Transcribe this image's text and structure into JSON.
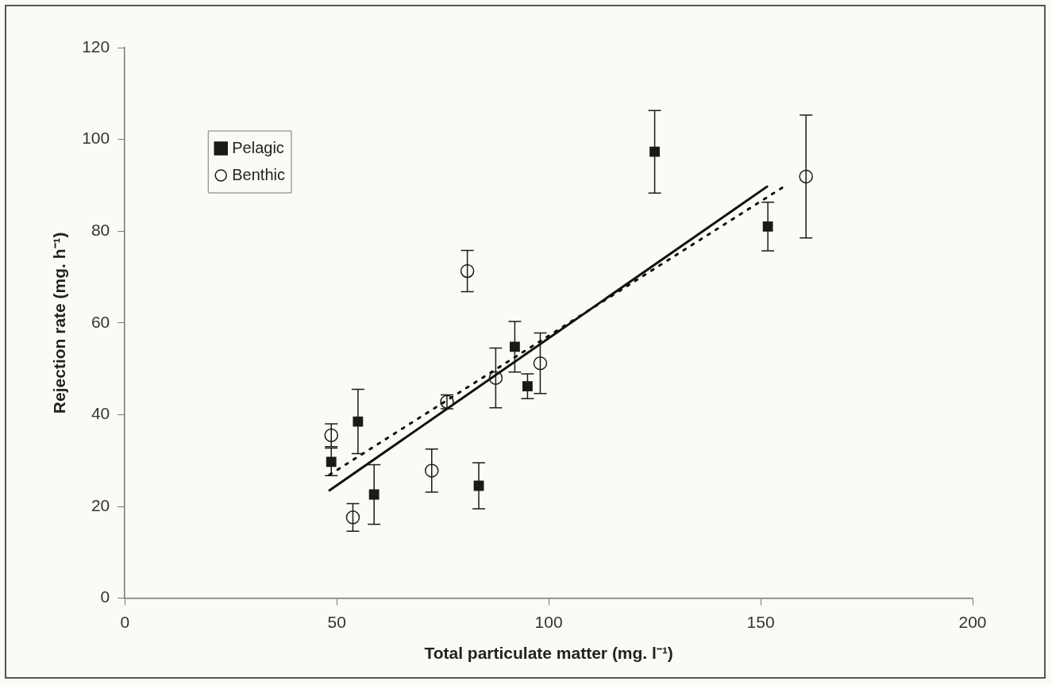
{
  "chart_data": {
    "type": "scatter",
    "xlabel": "Total particulate matter (mg. l⁻¹)",
    "ylabel": "Rejection rate (mg. h⁻¹)",
    "xlim": [
      0,
      200
    ],
    "xticks": [
      0,
      50,
      100,
      150,
      200
    ],
    "ylim": [
      0,
      120
    ],
    "yticks": [
      0,
      20,
      40,
      60,
      80,
      100,
      120
    ],
    "grid": false,
    "legend": "top left",
    "series": [
      {
        "name": "Pelagic",
        "type": "scatter",
        "marker": "square",
        "color": "#1a1a1a",
        "x": [
          48.7,
          55.0,
          58.8,
          83.5,
          92.0,
          95.0,
          125.0,
          151.7
        ],
        "values": [
          29.7,
          38.5,
          22.6,
          24.5,
          54.8,
          46.2,
          97.3,
          81.0
        ],
        "errors": [
          3,
          7,
          6.5,
          5,
          5.5,
          2.7,
          9,
          5.3
        ]
      },
      {
        "name": "Benthic",
        "type": "scatter",
        "marker": "circle",
        "color": "#1a1a1a",
        "x": [
          48.7,
          53.8,
          72.4,
          76.0,
          80.8,
          87.5,
          98.0,
          160.7
        ],
        "values": [
          35.5,
          17.6,
          27.8,
          42.8,
          71.3,
          48.0,
          51.2,
          91.9
        ],
        "errors": [
          2.5,
          3,
          4.7,
          1.5,
          4.5,
          6.5,
          6.6,
          13.4
        ]
      },
      {
        "type": "line",
        "marker": "none",
        "line_style": "solid",
        "color": "#111111",
        "x": [
          48.3,
          151.5
        ],
        "values": [
          23.5,
          89.7
        ]
      },
      {
        "type": "line",
        "marker": "none",
        "line_style": "dotted",
        "color": "#111111",
        "x": [
          48.3,
          156.0
        ],
        "values": [
          26.9,
          90.0
        ]
      }
    ]
  }
}
